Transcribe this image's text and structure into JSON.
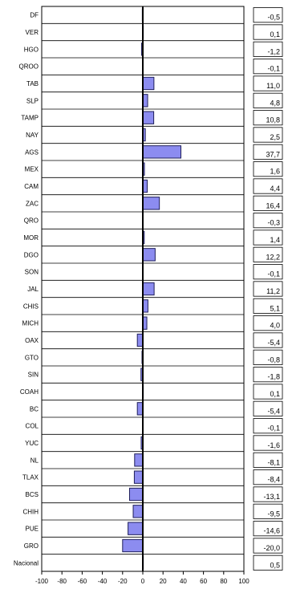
{
  "chart_data": {
    "type": "bar",
    "orientation": "horizontal",
    "categories": [
      "DF",
      "VER",
      "HGO",
      "QROO",
      "TAB",
      "SLP",
      "TAMP",
      "NAY",
      "AGS",
      "MEX",
      "CAM",
      "ZAC",
      "QRO",
      "MOR",
      "DGO",
      "SON",
      "JAL",
      "CHIS",
      "MICH",
      "OAX",
      "GTO",
      "SIN",
      "COAH",
      "BC",
      "COL",
      "YUC",
      "NL",
      "TLAX",
      "BCS",
      "CHIH",
      "PUE",
      "GRO",
      "Nacional"
    ],
    "values": [
      -0.5,
      0.1,
      -1.2,
      -0.1,
      11.0,
      4.8,
      10.8,
      2.5,
      37.7,
      1.6,
      4.4,
      16.4,
      -0.3,
      1.4,
      12.2,
      -0.1,
      11.2,
      5.1,
      4.0,
      -5.4,
      -0.8,
      -1.8,
      0.1,
      -5.4,
      -0.1,
      -1.6,
      -8.1,
      -8.4,
      -13.1,
      -9.5,
      -14.6,
      -20.0,
      0.5
    ],
    "value_labels": [
      "-0,5",
      "0,1",
      "-1,2",
      "-0,1",
      "11,0",
      "4,8",
      "10,8",
      "2,5",
      "37,7",
      "1,6",
      "4,4",
      "16,4",
      "-0,3",
      "1,4",
      "12,2",
      "-0,1",
      "11,2",
      "5,1",
      "4,0",
      "-5,4",
      "-0,8",
      "-1,8",
      "0,1",
      "-5,4",
      "-0,1",
      "-1,6",
      "-8,1",
      "-8,4",
      "-13,1",
      "-9,5",
      "-14,6",
      "-20,0",
      "0,5"
    ],
    "xlim": [
      -100,
      100
    ],
    "x_ticks": [
      -100,
      -80,
      -60,
      -40,
      -20,
      0,
      20,
      40,
      60,
      80,
      100
    ],
    "grid": "horizontal",
    "title": "",
    "xlabel": "",
    "ylabel": "",
    "colors": {
      "bar_fill": "#8c8cf0",
      "bar_stroke": "#1e1e5a",
      "axis": "#000000"
    }
  }
}
